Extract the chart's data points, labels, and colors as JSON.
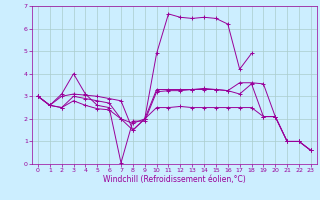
{
  "title": "",
  "xlabel": "Windchill (Refroidissement éolien,°C)",
  "bg_color": "#cceeff",
  "line_color": "#990099",
  "grid_color": "#aacccc",
  "xlim": [
    -0.5,
    23.5
  ],
  "ylim": [
    0,
    7
  ],
  "xticks": [
    0,
    1,
    2,
    3,
    4,
    5,
    6,
    7,
    8,
    9,
    10,
    11,
    12,
    13,
    14,
    15,
    16,
    17,
    18,
    19,
    20,
    21,
    22,
    23
  ],
  "yticks": [
    0,
    1,
    2,
    3,
    4,
    5,
    6,
    7
  ],
  "tick_fontsize": 4.5,
  "xlabel_fontsize": 5.5,
  "series": [
    [
      3.0,
      2.6,
      3.1,
      4.0,
      3.1,
      2.6,
      2.5,
      0.05,
      1.9,
      1.9,
      3.2,
      3.25,
      3.25,
      3.3,
      3.35,
      3.3,
      3.25,
      3.6,
      3.6,
      3.55,
      2.1,
      1.0,
      1.0,
      0.6
    ],
    [
      3.0,
      2.6,
      3.0,
      3.1,
      3.05,
      3.0,
      2.9,
      2.8,
      1.5,
      2.0,
      4.9,
      6.65,
      6.5,
      6.45,
      6.5,
      6.45,
      6.2,
      4.2,
      4.9,
      null,
      null,
      null,
      null,
      null
    ],
    [
      3.0,
      2.6,
      2.5,
      3.0,
      2.9,
      2.8,
      2.7,
      2.0,
      1.5,
      2.0,
      3.3,
      3.3,
      3.3,
      3.3,
      3.3,
      3.3,
      3.25,
      3.1,
      3.55,
      2.1,
      2.1,
      1.0,
      1.0,
      0.6
    ],
    [
      3.0,
      2.6,
      2.5,
      2.8,
      2.6,
      2.45,
      2.4,
      2.0,
      1.8,
      2.0,
      2.5,
      2.5,
      2.55,
      2.5,
      2.5,
      2.5,
      2.5,
      2.5,
      2.5,
      2.1,
      2.1,
      1.0,
      1.0,
      0.6
    ]
  ],
  "linewidth": 0.7,
  "markersize": 2.5,
  "markeredgewidth": 0.7
}
